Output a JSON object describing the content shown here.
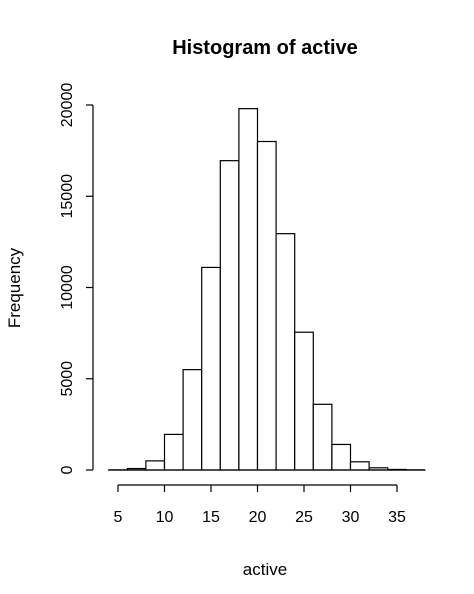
{
  "chart_data": {
    "type": "bar",
    "title": "Histogram of active",
    "xlabel": "active",
    "ylabel": "Frequency",
    "xlim": [
      5,
      35
    ],
    "ylim": [
      0,
      20000
    ],
    "x_ticks": [
      5,
      10,
      15,
      20,
      25,
      30,
      35
    ],
    "y_ticks": [
      0,
      5000,
      10000,
      15000,
      20000
    ],
    "bin_edges": [
      4,
      6,
      8,
      10,
      12,
      14,
      16,
      18,
      20,
      22,
      24,
      26,
      28,
      30,
      32,
      34,
      36,
      38
    ],
    "values": [
      5,
      80,
      500,
      1950,
      5500,
      11100,
      16950,
      19800,
      18000,
      12950,
      7550,
      3600,
      1400,
      450,
      120,
      30,
      5
    ],
    "grid": false,
    "legend": "none"
  }
}
